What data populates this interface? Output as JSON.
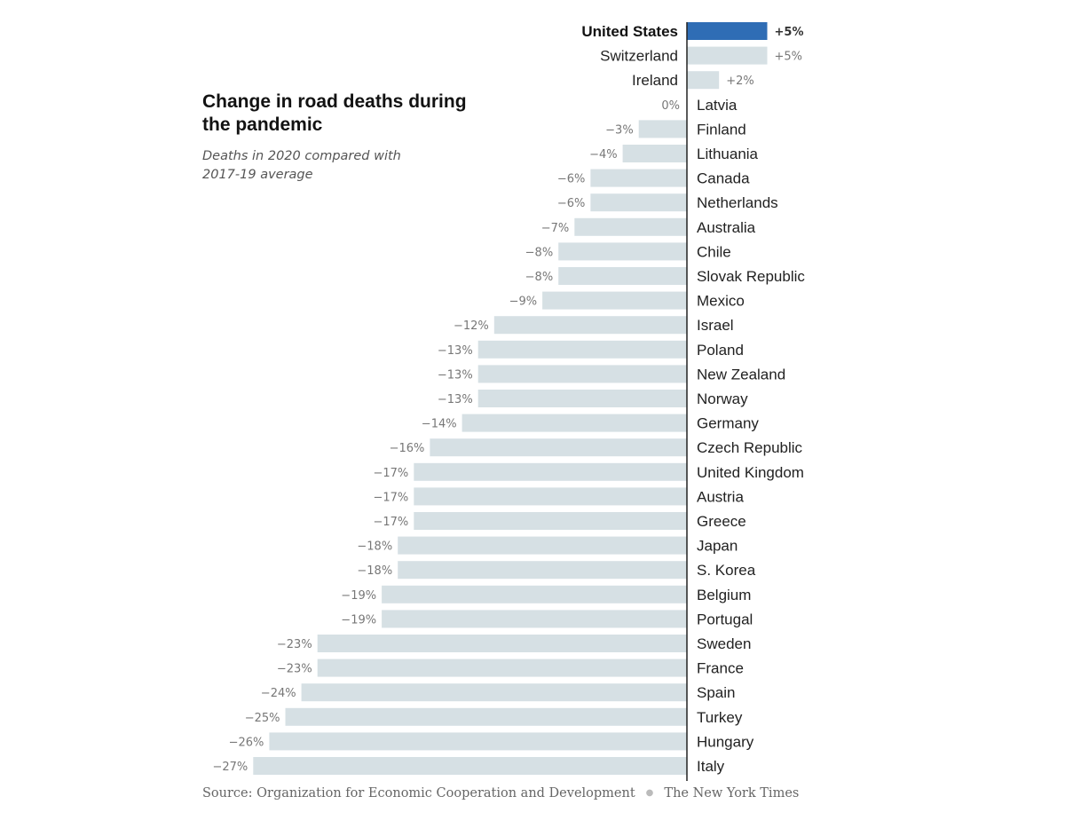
{
  "header": {
    "title": "Change in road deaths during the pandemic",
    "subtitle": "Deaths in 2020 compared with 2017-19 average"
  },
  "footer": {
    "source": "Source: Organization for Economic Cooperation and Development",
    "credit": "The New York Times"
  },
  "colors": {
    "highlight_bar": "#2f6db5",
    "bar": "#d6e0e4",
    "axis": "#222222"
  },
  "chart_data": {
    "type": "bar",
    "orientation": "horizontal",
    "highlight": "United States",
    "categories": [
      "United States",
      "Switzerland",
      "Ireland",
      "Latvia",
      "Finland",
      "Lithuania",
      "Canada",
      "Netherlands",
      "Australia",
      "Chile",
      "Slovak Republic",
      "Mexico",
      "Israel",
      "Poland",
      "New Zealand",
      "Norway",
      "Germany",
      "Czech Republic",
      "United Kingdom",
      "Austria",
      "Greece",
      "Japan",
      "S. Korea",
      "Belgium",
      "Portugal",
      "Sweden",
      "France",
      "Spain",
      "Turkey",
      "Hungary",
      "Italy"
    ],
    "values": [
      5,
      5,
      2,
      0,
      -3,
      -4,
      -6,
      -6,
      -7,
      -8,
      -8,
      -9,
      -12,
      -13,
      -13,
      -13,
      -14,
      -16,
      -17,
      -17,
      -17,
      -18,
      -18,
      -19,
      -19,
      -23,
      -23,
      -24,
      -25,
      -26,
      -27
    ],
    "value_labels": [
      "+5%",
      "+5%",
      "+2%",
      "0%",
      "−3%",
      "−4%",
      "−6%",
      "−6%",
      "−7%",
      "−8%",
      "−8%",
      "−9%",
      "−12%",
      "−13%",
      "−13%",
      "−13%",
      "−14%",
      "−16%",
      "−17%",
      "−17%",
      "−17%",
      "−18%",
      "−18%",
      "−19%",
      "−19%",
      "−23%",
      "−23%",
      "−24%",
      "−25%",
      "−26%",
      "−27%"
    ],
    "unit": "%",
    "xlim": [
      -27,
      5
    ]
  }
}
